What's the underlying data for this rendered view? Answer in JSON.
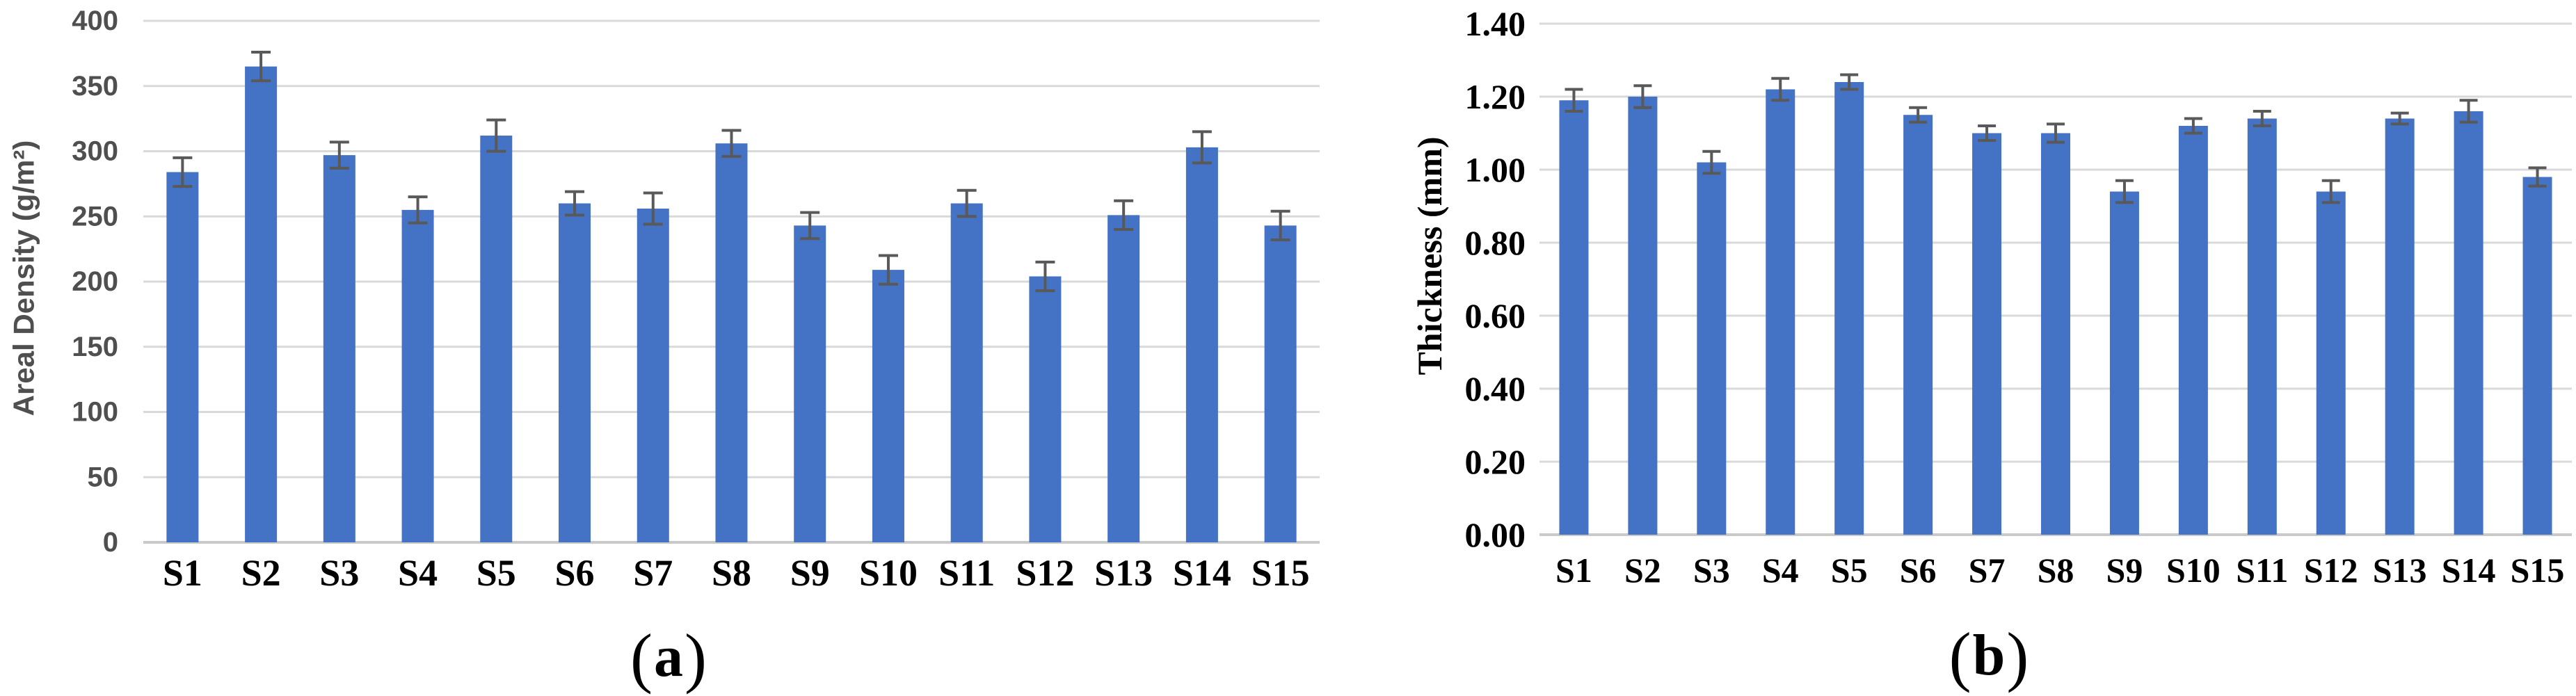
{
  "figure": {
    "background": "#FFFFFF",
    "bar_color": "#4472C4",
    "error_bar_color": "#595959",
    "gridline_color": "#D9D9D9",
    "baseline_color": "#C9C9C9",
    "left_axis_text_color": "#4F4F4F",
    "right_axis_text_color": "#000000"
  },
  "chart_data": [
    {
      "type": "bar",
      "panel": "a",
      "caption_open": "(",
      "caption_letter": "a",
      "caption_close": ")",
      "title": "",
      "xlabel": "",
      "ylabel": "Areal Density (g/m²)",
      "categories": [
        "S1",
        "S2",
        "S3",
        "S4",
        "S5",
        "S6",
        "S7",
        "S8",
        "S9",
        "S10",
        "S11",
        "S12",
        "S13",
        "S14",
        "S15"
      ],
      "values": [
        284,
        365,
        297,
        255,
        312,
        260,
        256,
        306,
        243,
        209,
        260,
        204,
        251,
        303,
        243
      ],
      "errors": [
        11,
        11,
        10,
        10,
        12,
        9,
        12,
        10,
        10,
        11,
        10,
        11,
        11,
        12,
        11
      ],
      "ylim": [
        0,
        400
      ],
      "ytick_step": 50,
      "ytick_decimals": 0,
      "grid": true,
      "legend_position": "none"
    },
    {
      "type": "bar",
      "panel": "b",
      "caption_open": "(",
      "caption_letter": "b",
      "caption_close": ")",
      "title": "",
      "xlabel": "",
      "ylabel": "Thickness (mm)",
      "categories": [
        "S1",
        "S2",
        "S3",
        "S4",
        "S5",
        "S6",
        "S7",
        "S8",
        "S9",
        "S10",
        "S11",
        "S12",
        "S13",
        "S14",
        "S15"
      ],
      "values": [
        1.19,
        1.2,
        1.02,
        1.22,
        1.24,
        1.15,
        1.1,
        1.1,
        0.94,
        1.12,
        1.14,
        0.94,
        1.14,
        1.16,
        0.98
      ],
      "errors": [
        0.03,
        0.03,
        0.03,
        0.03,
        0.02,
        0.02,
        0.02,
        0.025,
        0.03,
        0.02,
        0.02,
        0.03,
        0.015,
        0.03,
        0.025
      ],
      "ylim": [
        0,
        1.4
      ],
      "ytick_step": 0.2,
      "ytick_decimals": 2,
      "grid": true,
      "legend_position": "none"
    }
  ]
}
